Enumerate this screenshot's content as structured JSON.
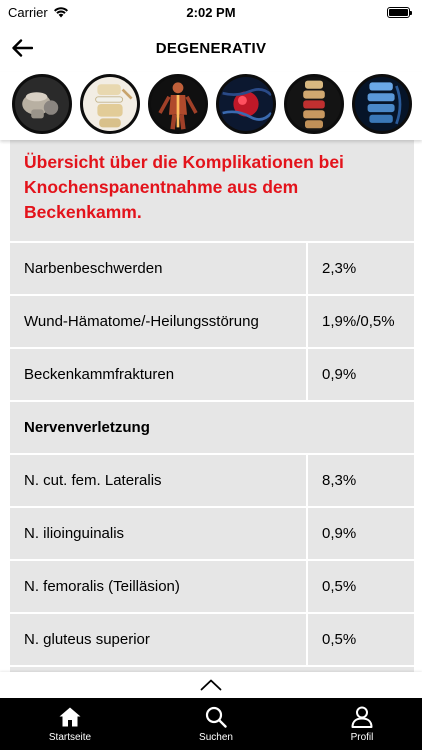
{
  "status_bar": {
    "carrier": "Carrier",
    "time": "2:02 PM"
  },
  "nav": {
    "title": "DEGENERATIV",
    "back_icon": "arrow-left-icon"
  },
  "thumbnails": [
    {
      "name": "spine-vertebra-joint",
      "accent": "#c9c2b6"
    },
    {
      "name": "spine-disc-side",
      "accent": "#e8d8b0"
    },
    {
      "name": "human-body-nerves",
      "accent": "#e0603a"
    },
    {
      "name": "red-cell-blue",
      "accent": "#d02030"
    },
    {
      "name": "spine-column-red",
      "accent": "#c8a060"
    },
    {
      "name": "spine-xray-blue",
      "accent": "#4a90d0"
    }
  ],
  "table": {
    "heading": "Übersicht über die Komplikationen bei Knochenspanentnahme aus dem Beckenkamm.",
    "rows": [
      {
        "label": "Narbenbeschwerden",
        "value": "2,3%"
      },
      {
        "label": "Wund-Hämatome/-Heilungsstörung",
        "value": "1,9%/0,5%"
      },
      {
        "label": "Beckenkammfrakturen",
        "value": "0,9%"
      }
    ],
    "section": "Nervenverletzung",
    "nerve_rows": [
      {
        "label": "N. cut. fem. Lateralis",
        "value": "8,3%"
      },
      {
        "label": "N. ilioinguinalis",
        "value": "0,9%"
      },
      {
        "label": "N. femoralis (Teilläsion)",
        "value": "0,5%"
      },
      {
        "label": "N. gluteus superior",
        "value": "0,5%"
      }
    ]
  },
  "tab_bar": {
    "tabs": [
      {
        "label": "Startseite",
        "icon": "home-icon"
      },
      {
        "label": "Suchen",
        "icon": "search-icon"
      },
      {
        "label": "Profil",
        "icon": "user-icon"
      }
    ]
  },
  "colors": {
    "heading_red": "#e3131b",
    "cell_gray": "#e6e6e6",
    "tab_bar_bg": "#000000"
  }
}
